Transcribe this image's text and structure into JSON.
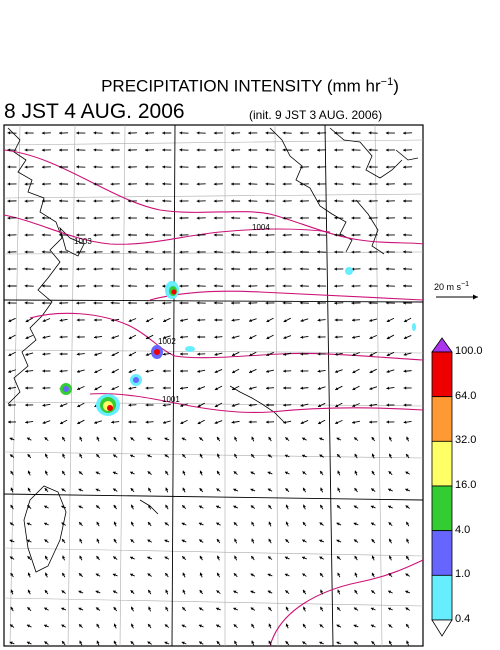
{
  "header": {
    "title_main": "PRECIPITATION INTENSITY (mm hr",
    "title_exp": "−1",
    "title_close": ")",
    "valid_time": "8 JST 4 AUG. 2006",
    "init_time": "(init. 9 JST 3 AUG. 2006)"
  },
  "reference_vector": {
    "label": "20 m s",
    "exp": "−1"
  },
  "colorbar": {
    "levels": [
      "100.0",
      "64.0",
      "32.0",
      "16.0",
      "4.0",
      "1.0",
      "0.4"
    ],
    "colors": [
      "#ee0000",
      "#ff9933",
      "#ffff66",
      "#33cc33",
      "#6666ff",
      "#66eeff"
    ],
    "top_arrow_color": "#aa33ee"
  },
  "isobars": [
    {
      "label": "1003"
    },
    {
      "label": "1004"
    },
    {
      "label": "1002"
    },
    {
      "label": "1001"
    }
  ],
  "colors": {
    "isobar": "#cc1177",
    "coast": "#000000",
    "grid": "#aaaaaa",
    "vector": "#000000"
  }
}
